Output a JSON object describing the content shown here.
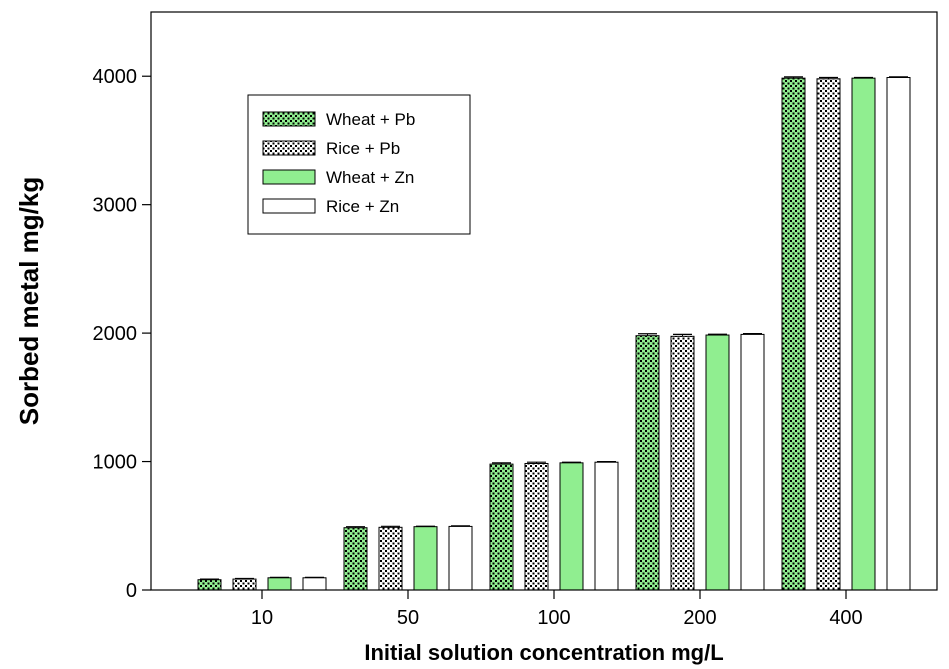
{
  "chart_data": {
    "type": "bar",
    "xlabel": "Initial solution concentration mg/L",
    "ylabel": "Sorbed metal mg/kg",
    "categories": [
      "10",
      "50",
      "100",
      "200",
      "400"
    ],
    "ylim": [
      0,
      4500
    ],
    "yticks": [
      "0",
      "1000",
      "2000",
      "3000",
      "4000"
    ],
    "grid": false,
    "legend_position": "top-left",
    "series": [
      {
        "name": "Wheat + Pb",
        "values": [
          80,
          485,
          980,
          1980,
          3985
        ],
        "error": [
          5,
          8,
          10,
          15,
          10
        ],
        "fill": "#90ee90",
        "pattern": "dots"
      },
      {
        "name": "Rice + Pb",
        "values": [
          85,
          488,
          985,
          1975,
          3980
        ],
        "error": [
          5,
          8,
          10,
          15,
          10
        ],
        "fill": "#ffffff",
        "pattern": "dots"
      },
      {
        "name": "Wheat + Zn",
        "values": [
          95,
          493,
          990,
          1985,
          3985
        ],
        "error": [
          3,
          4,
          5,
          6,
          5
        ],
        "fill": "#90ee90",
        "pattern": "none"
      },
      {
        "name": "Rice + Zn",
        "values": [
          95,
          495,
          995,
          1990,
          3990
        ],
        "error": [
          3,
          4,
          5,
          6,
          5
        ],
        "fill": "#ffffff",
        "pattern": "none"
      }
    ]
  }
}
